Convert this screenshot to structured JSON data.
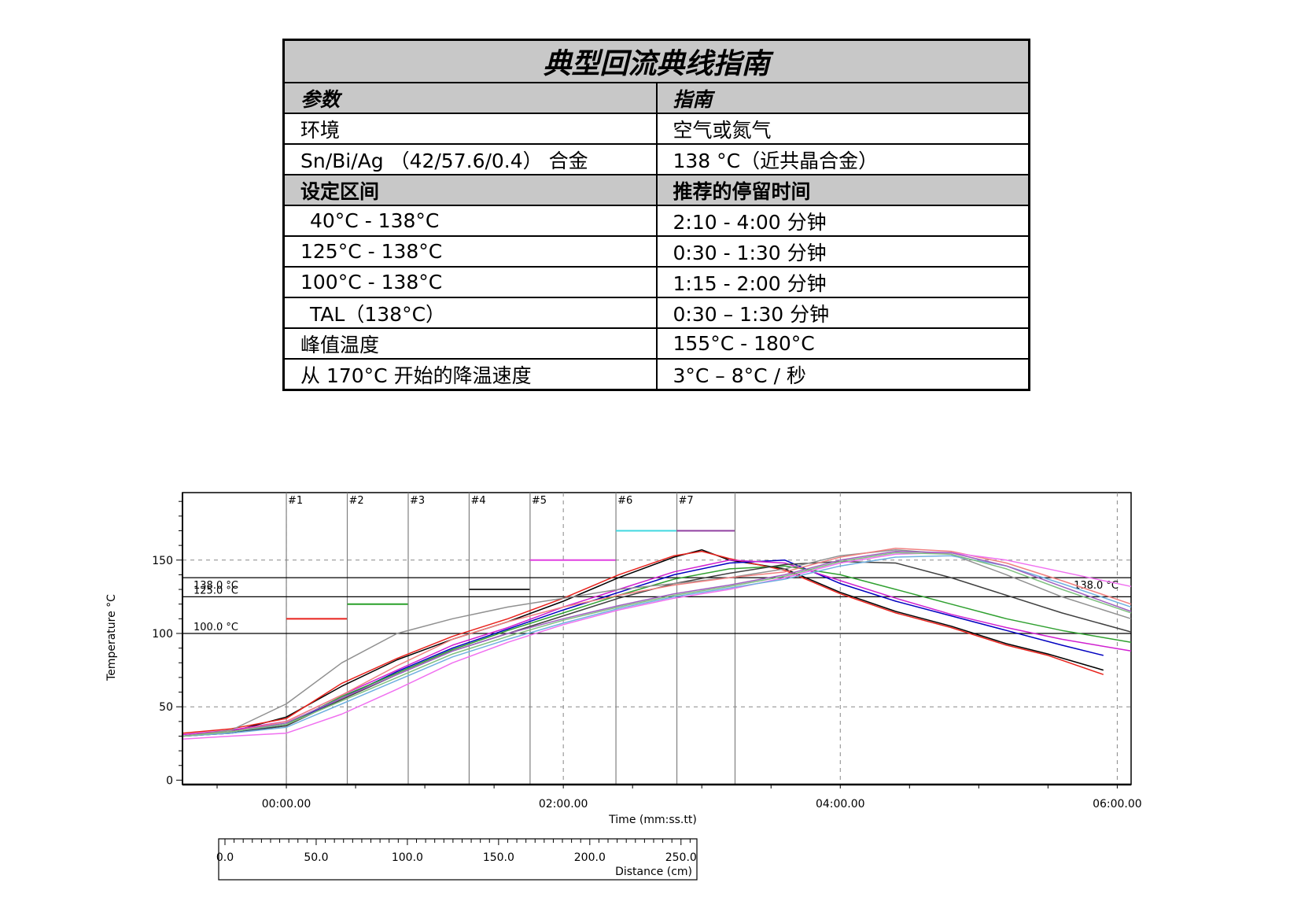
{
  "table": {
    "title": "典型回流典线指南",
    "header": [
      "参数",
      "指南"
    ],
    "rows_a": [
      [
        "环境",
        "空气或氮气"
      ],
      [
        "Sn/Bi/Ag （42/57.6/0.4） 合金",
        "138 °C（近共晶合金）"
      ]
    ],
    "subheader": [
      "设定区间",
      "推荐的停留时间"
    ],
    "rows_b": [
      [
        " 40°C - 138°C",
        "2:10 - 4:00 分钟"
      ],
      [
        "125°C - 138°C",
        "0:30 - 1:30 分钟"
      ],
      [
        "100°C - 138°C",
        "1:15 - 2:00 分钟"
      ],
      [
        " TAL（138°C）",
        "0:30 – 1:30 分钟"
      ],
      [
        "峰值温度",
        "155°C - 180°C"
      ],
      [
        "从 170°C 开始的降温速度",
        "3°C   – 8°C /  秒"
      ]
    ]
  },
  "chart_data": {
    "type": "line",
    "ylabel": "Temperature °C",
    "xlabel": "Time (mm:ss.tt)",
    "x2label": "Distance (cm)",
    "xlim": [
      -0.75,
      6.1
    ],
    "ylim": [
      -3,
      196
    ],
    "yticks": [
      0,
      50,
      100,
      150
    ],
    "xticks": [
      {
        "v": 0,
        "label": "00:00.00"
      },
      {
        "v": 2,
        "label": "02:00.00"
      },
      {
        "v": 4,
        "label": "04:00.00"
      },
      {
        "v": 6,
        "label": "06:00.00"
      }
    ],
    "distance_ticks": [
      {
        "v": 0,
        "label": "0.0"
      },
      {
        "v": 50,
        "label": "50.0"
      },
      {
        "v": 100,
        "label": "100.0"
      },
      {
        "v": 150,
        "label": "150.0"
      },
      {
        "v": 200,
        "label": "200.0"
      },
      {
        "v": 250,
        "label": "250.0"
      }
    ],
    "distance_range": [
      0,
      257
    ],
    "zones": [
      {
        "label": "#1",
        "x_start": 0.0,
        "x_end": 0.44,
        "setpoint": 110,
        "color": "#e8221c"
      },
      {
        "label": "#2",
        "x_start": 0.44,
        "x_end": 0.88,
        "setpoint": 120,
        "color": "#2aa02a"
      },
      {
        "label": "#3",
        "x_start": 0.88,
        "x_end": 1.32,
        "setpoint": null,
        "color": "#000000"
      },
      {
        "label": "#4",
        "x_start": 1.32,
        "x_end": 1.76,
        "setpoint": 130,
        "color": "#303030"
      },
      {
        "label": "#5",
        "x_start": 1.76,
        "x_end": 2.38,
        "setpoint": 150,
        "color": "#e040e0"
      },
      {
        "label": "#6",
        "x_start": 2.38,
        "x_end": 2.82,
        "setpoint": 170,
        "color": "#40d8e0"
      },
      {
        "label": "#7",
        "x_start": 2.82,
        "x_end": 3.24,
        "setpoint": 170,
        "color": "#9040a0"
      }
    ],
    "reference_lines": [
      {
        "value": 138,
        "label": "138.0 °C",
        "style": "solid"
      },
      {
        "value": 125,
        "label": "125.0 °C",
        "style": "solid"
      },
      {
        "value": 100,
        "label": "100.0 °C",
        "style": "solid"
      }
    ],
    "series": [
      {
        "color": "#000000",
        "x": [
          -0.75,
          -0.4,
          0,
          0.4,
          0.8,
          1.2,
          1.6,
          2,
          2.4,
          2.8,
          3.0,
          3.2,
          3.6,
          4.0,
          4.4,
          4.8,
          5.2,
          5.5,
          5.9
        ],
        "y": [
          30,
          33,
          43,
          64,
          82,
          96,
          108,
          122,
          138,
          152,
          157,
          150,
          144,
          128,
          115,
          105,
          93,
          86,
          75
        ]
      },
      {
        "color": "#e8221c",
        "x": [
          -0.75,
          -0.4,
          0,
          0.4,
          0.8,
          1.2,
          1.6,
          2,
          2.4,
          2.8,
          3.0,
          3.2,
          3.6,
          4.0,
          4.4,
          4.8,
          5.2,
          5.5,
          5.9
        ],
        "y": [
          32,
          35,
          42,
          66,
          83,
          98,
          110,
          124,
          140,
          153,
          156,
          151,
          143,
          127,
          114,
          104,
          92,
          85,
          72
        ]
      },
      {
        "color": "#0000c0",
        "x": [
          -0.75,
          -0.4,
          0,
          0.4,
          0.8,
          1.2,
          1.6,
          2,
          2.4,
          2.8,
          3.2,
          3.6,
          4.0,
          4.4,
          4.8,
          5.2,
          5.6,
          5.9
        ],
        "y": [
          30,
          32,
          38,
          56,
          74,
          90,
          103,
          116,
          128,
          140,
          148,
          150,
          134,
          122,
          112,
          102,
          92,
          85
        ]
      },
      {
        "color": "#d020d0",
        "x": [
          -0.75,
          -0.4,
          0,
          0.4,
          0.8,
          1.2,
          1.6,
          2,
          2.4,
          2.8,
          3.2,
          3.6,
          4.0,
          4.4,
          4.8,
          5.2,
          5.6,
          6.1
        ],
        "y": [
          31,
          34,
          40,
          58,
          75,
          92,
          104,
          118,
          130,
          142,
          150,
          148,
          136,
          124,
          113,
          104,
          96,
          88
        ]
      },
      {
        "color": "#30a030",
        "x": [
          -0.75,
          -0.4,
          0,
          0.4,
          0.8,
          1.2,
          1.6,
          2,
          2.4,
          2.8,
          3.2,
          3.6,
          4.0,
          4.4,
          4.8,
          5.2,
          5.6,
          6.1
        ],
        "y": [
          30,
          33,
          38,
          57,
          73,
          89,
          102,
          114,
          126,
          137,
          144,
          146,
          140,
          130,
          120,
          110,
          102,
          94
        ]
      },
      {
        "color": "#404040",
        "x": [
          -0.75,
          -0.4,
          0,
          0.4,
          0.8,
          1.2,
          1.6,
          2,
          2.4,
          2.8,
          3.2,
          3.6,
          4.0,
          4.4,
          4.8,
          5.2,
          5.6,
          6.1
        ],
        "y": [
          30,
          32,
          37,
          55,
          72,
          88,
          100,
          112,
          124,
          134,
          141,
          147,
          149,
          148,
          138,
          126,
          114,
          101
        ]
      },
      {
        "color": "#909090",
        "x": [
          -0.75,
          -0.4,
          0,
          0.4,
          0.8,
          1.2,
          1.6,
          2,
          2.4,
          2.8,
          3.2,
          3.6,
          4.0,
          4.4,
          4.8,
          5.2,
          5.6,
          6.1
        ],
        "y": [
          30,
          34,
          52,
          80,
          100,
          110,
          118,
          124,
          130,
          134,
          138,
          144,
          153,
          157,
          154,
          140,
          125,
          110
        ]
      },
      {
        "color": "#f08080",
        "x": [
          -0.75,
          -0.4,
          0,
          0.4,
          0.8,
          1.2,
          1.6,
          2,
          2.4,
          2.8,
          3.2,
          3.6,
          4.0,
          4.4,
          4.8,
          5.2,
          5.6,
          6.1
        ],
        "y": [
          30,
          33,
          40,
          58,
          78,
          96,
          108,
          118,
          126,
          133,
          138,
          142,
          152,
          158,
          156,
          148,
          136,
          120
        ]
      },
      {
        "color": "#f070f0",
        "x": [
          -0.75,
          -0.4,
          0,
          0.4,
          0.8,
          1.2,
          1.6,
          2,
          2.4,
          2.8,
          3.2,
          3.6,
          4.0,
          4.4,
          4.8,
          5.2,
          5.6,
          6.1
        ],
        "y": [
          28,
          30,
          32,
          45,
          62,
          80,
          94,
          106,
          116,
          124,
          130,
          138,
          148,
          154,
          155,
          150,
          142,
          132
        ]
      },
      {
        "color": "#70b0e0",
        "x": [
          -0.75,
          -0.4,
          0,
          0.4,
          0.8,
          1.2,
          1.6,
          2,
          2.4,
          2.8,
          3.2,
          3.6,
          4.0,
          4.4,
          4.8,
          5.2,
          5.6,
          6.1
        ],
        "y": [
          30,
          32,
          36,
          52,
          68,
          84,
          96,
          107,
          117,
          125,
          131,
          137,
          146,
          152,
          153,
          146,
          134,
          118
        ]
      },
      {
        "color": "#a060c0",
        "x": [
          -0.75,
          -0.4,
          0,
          0.4,
          0.8,
          1.2,
          1.6,
          2,
          2.4,
          2.8,
          3.2,
          3.6,
          4.0,
          4.4,
          4.8,
          5.2,
          5.6,
          6.1
        ],
        "y": [
          30,
          33,
          39,
          56,
          72,
          88,
          100,
          110,
          119,
          127,
          133,
          140,
          150,
          156,
          155,
          146,
          132,
          115
        ]
      },
      {
        "color": "#80c080",
        "x": [
          -0.75,
          -0.4,
          0,
          0.4,
          0.8,
          1.2,
          1.6,
          2,
          2.4,
          2.8,
          3.2,
          3.6,
          4.0,
          4.4,
          4.8,
          5.2,
          5.6,
          6.1
        ],
        "y": [
          30,
          33,
          38,
          54,
          70,
          86,
          98,
          109,
          118,
          126,
          132,
          139,
          149,
          155,
          154,
          144,
          130,
          114
        ]
      }
    ]
  }
}
